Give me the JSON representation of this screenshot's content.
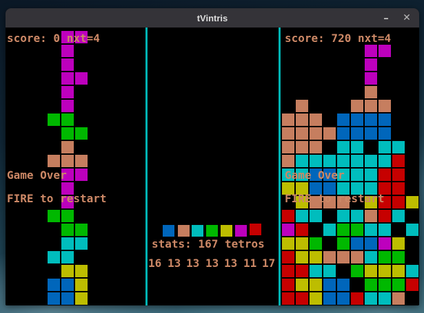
{
  "window": {
    "title": "tVintris",
    "minimize_glyph": "–",
    "close_glyph": "✕"
  },
  "colors": {
    "magenta": "#bd00bd",
    "green": "#00b800",
    "salmon": "#c67e5f",
    "cyan": "#00bdbd",
    "yellow": "#bdbd00",
    "blue": "#0066bb",
    "red": "#c60000",
    "text": "#cc8866",
    "separator": "#00b3b3"
  },
  "left_panel": {
    "score_text": "score: 0 nxt=4",
    "game_over_text": "Game Over",
    "restart_text": "FIRE to restart",
    "blocks": [
      [
        0,
        4,
        "magenta"
      ],
      [
        0,
        5,
        "magenta"
      ],
      [
        1,
        4,
        "magenta"
      ],
      [
        2,
        4,
        "magenta"
      ],
      [
        3,
        4,
        "magenta"
      ],
      [
        3,
        5,
        "magenta"
      ],
      [
        4,
        4,
        "magenta"
      ],
      [
        5,
        4,
        "magenta"
      ],
      [
        6,
        3,
        "green"
      ],
      [
        6,
        4,
        "green"
      ],
      [
        7,
        4,
        "green"
      ],
      [
        7,
        5,
        "green"
      ],
      [
        8,
        4,
        "salmon"
      ],
      [
        9,
        3,
        "salmon"
      ],
      [
        9,
        4,
        "salmon"
      ],
      [
        9,
        5,
        "salmon"
      ],
      [
        10,
        4,
        "magenta"
      ],
      [
        10,
        5,
        "magenta"
      ],
      [
        11,
        4,
        "magenta"
      ],
      [
        12,
        4,
        "magenta"
      ],
      [
        13,
        3,
        "green"
      ],
      [
        13,
        4,
        "green"
      ],
      [
        14,
        4,
        "green"
      ],
      [
        14,
        5,
        "green"
      ],
      [
        15,
        4,
        "cyan"
      ],
      [
        15,
        5,
        "cyan"
      ],
      [
        16,
        3,
        "cyan"
      ],
      [
        16,
        4,
        "cyan"
      ],
      [
        17,
        4,
        "yellow"
      ],
      [
        17,
        5,
        "yellow"
      ],
      [
        18,
        3,
        "blue"
      ],
      [
        18,
        4,
        "blue"
      ],
      [
        18,
        5,
        "yellow"
      ],
      [
        19,
        3,
        "blue"
      ],
      [
        19,
        4,
        "blue"
      ],
      [
        19,
        5,
        "yellow"
      ]
    ]
  },
  "middle_panel": {
    "stats_text": "stats: 167 tetros",
    "preview_pieces": [
      "blue",
      "salmon",
      "cyan",
      "green",
      "yellow",
      "magenta",
      "red"
    ],
    "piece_counts": [
      "16",
      "13",
      "13",
      "13",
      "13",
      "11",
      "17"
    ]
  },
  "right_panel": {
    "score_text": "score: 720 nxt=4",
    "game_over_text": "Game Over",
    "restart_text": "FIRE to restart",
    "blocks": [
      [
        1,
        6,
        "magenta"
      ],
      [
        1,
        7,
        "magenta"
      ],
      [
        2,
        6,
        "magenta"
      ],
      [
        3,
        6,
        "magenta"
      ],
      [
        4,
        6,
        "salmon"
      ],
      [
        5,
        1,
        "salmon"
      ],
      [
        5,
        5,
        "salmon"
      ],
      [
        5,
        6,
        "salmon"
      ],
      [
        5,
        7,
        "salmon"
      ],
      [
        6,
        0,
        "salmon"
      ],
      [
        6,
        1,
        "salmon"
      ],
      [
        6,
        2,
        "salmon"
      ],
      [
        6,
        4,
        "blue"
      ],
      [
        6,
        5,
        "blue"
      ],
      [
        6,
        6,
        "blue"
      ],
      [
        6,
        7,
        "blue"
      ],
      [
        7,
        0,
        "salmon"
      ],
      [
        7,
        1,
        "salmon"
      ],
      [
        7,
        2,
        "salmon"
      ],
      [
        7,
        3,
        "salmon"
      ],
      [
        7,
        4,
        "blue"
      ],
      [
        7,
        5,
        "blue"
      ],
      [
        7,
        6,
        "blue"
      ],
      [
        7,
        7,
        "blue"
      ],
      [
        8,
        0,
        "salmon"
      ],
      [
        8,
        1,
        "salmon"
      ],
      [
        8,
        2,
        "salmon"
      ],
      [
        8,
        4,
        "cyan"
      ],
      [
        8,
        5,
        "cyan"
      ],
      [
        8,
        7,
        "cyan"
      ],
      [
        8,
        8,
        "cyan"
      ],
      [
        9,
        0,
        "salmon"
      ],
      [
        9,
        1,
        "cyan"
      ],
      [
        9,
        2,
        "cyan"
      ],
      [
        9,
        3,
        "cyan"
      ],
      [
        9,
        4,
        "cyan"
      ],
      [
        9,
        5,
        "cyan"
      ],
      [
        9,
        6,
        "cyan"
      ],
      [
        9,
        7,
        "cyan"
      ],
      [
        9,
        8,
        "red"
      ],
      [
        10,
        0,
        "cyan"
      ],
      [
        10,
        1,
        "cyan"
      ],
      [
        10,
        2,
        "blue"
      ],
      [
        10,
        3,
        "blue"
      ],
      [
        10,
        4,
        "cyan"
      ],
      [
        10,
        5,
        "cyan"
      ],
      [
        10,
        6,
        "cyan"
      ],
      [
        10,
        7,
        "red"
      ],
      [
        10,
        8,
        "red"
      ],
      [
        11,
        0,
        "yellow"
      ],
      [
        11,
        1,
        "yellow"
      ],
      [
        11,
        2,
        "blue"
      ],
      [
        11,
        3,
        "blue"
      ],
      [
        11,
        4,
        "cyan"
      ],
      [
        11,
        5,
        "cyan"
      ],
      [
        11,
        6,
        "cyan"
      ],
      [
        11,
        7,
        "red"
      ],
      [
        11,
        8,
        "red"
      ],
      [
        12,
        1,
        "yellow"
      ],
      [
        12,
        2,
        "salmon"
      ],
      [
        12,
        3,
        "salmon"
      ],
      [
        12,
        4,
        "salmon"
      ],
      [
        12,
        6,
        "yellow"
      ],
      [
        12,
        7,
        "red"
      ],
      [
        12,
        8,
        "red"
      ],
      [
        12,
        9,
        "yellow"
      ],
      [
        13,
        0,
        "red"
      ],
      [
        13,
        1,
        "cyan"
      ],
      [
        13,
        2,
        "cyan"
      ],
      [
        13,
        4,
        "cyan"
      ],
      [
        13,
        5,
        "cyan"
      ],
      [
        13,
        6,
        "salmon"
      ],
      [
        13,
        7,
        "red"
      ],
      [
        13,
        8,
        "cyan"
      ],
      [
        14,
        0,
        "magenta"
      ],
      [
        14,
        1,
        "red"
      ],
      [
        14,
        3,
        "cyan"
      ],
      [
        14,
        4,
        "green"
      ],
      [
        14,
        5,
        "green"
      ],
      [
        14,
        6,
        "cyan"
      ],
      [
        14,
        7,
        "cyan"
      ],
      [
        14,
        9,
        "cyan"
      ],
      [
        15,
        0,
        "yellow"
      ],
      [
        15,
        1,
        "yellow"
      ],
      [
        15,
        2,
        "green"
      ],
      [
        15,
        4,
        "green"
      ],
      [
        15,
        5,
        "blue"
      ],
      [
        15,
        6,
        "blue"
      ],
      [
        15,
        7,
        "magenta"
      ],
      [
        15,
        8,
        "yellow"
      ],
      [
        16,
        0,
        "red"
      ],
      [
        16,
        1,
        "yellow"
      ],
      [
        16,
        2,
        "yellow"
      ],
      [
        16,
        3,
        "salmon"
      ],
      [
        16,
        4,
        "salmon"
      ],
      [
        16,
        5,
        "salmon"
      ],
      [
        16,
        6,
        "cyan"
      ],
      [
        16,
        7,
        "green"
      ],
      [
        16,
        8,
        "green"
      ],
      [
        17,
        0,
        "red"
      ],
      [
        17,
        1,
        "red"
      ],
      [
        17,
        2,
        "cyan"
      ],
      [
        17,
        3,
        "cyan"
      ],
      [
        17,
        5,
        "green"
      ],
      [
        17,
        6,
        "yellow"
      ],
      [
        17,
        7,
        "yellow"
      ],
      [
        17,
        8,
        "yellow"
      ],
      [
        17,
        9,
        "cyan"
      ],
      [
        18,
        0,
        "red"
      ],
      [
        18,
        1,
        "yellow"
      ],
      [
        18,
        2,
        "yellow"
      ],
      [
        18,
        3,
        "blue"
      ],
      [
        18,
        4,
        "blue"
      ],
      [
        18,
        6,
        "green"
      ],
      [
        18,
        7,
        "green"
      ],
      [
        18,
        8,
        "green"
      ],
      [
        18,
        9,
        "red"
      ],
      [
        19,
        0,
        "red"
      ],
      [
        19,
        1,
        "red"
      ],
      [
        19,
        2,
        "yellow"
      ],
      [
        19,
        3,
        "blue"
      ],
      [
        19,
        4,
        "blue"
      ],
      [
        19,
        5,
        "red"
      ],
      [
        19,
        6,
        "cyan"
      ],
      [
        19,
        7,
        "cyan"
      ],
      [
        19,
        8,
        "salmon"
      ]
    ]
  }
}
